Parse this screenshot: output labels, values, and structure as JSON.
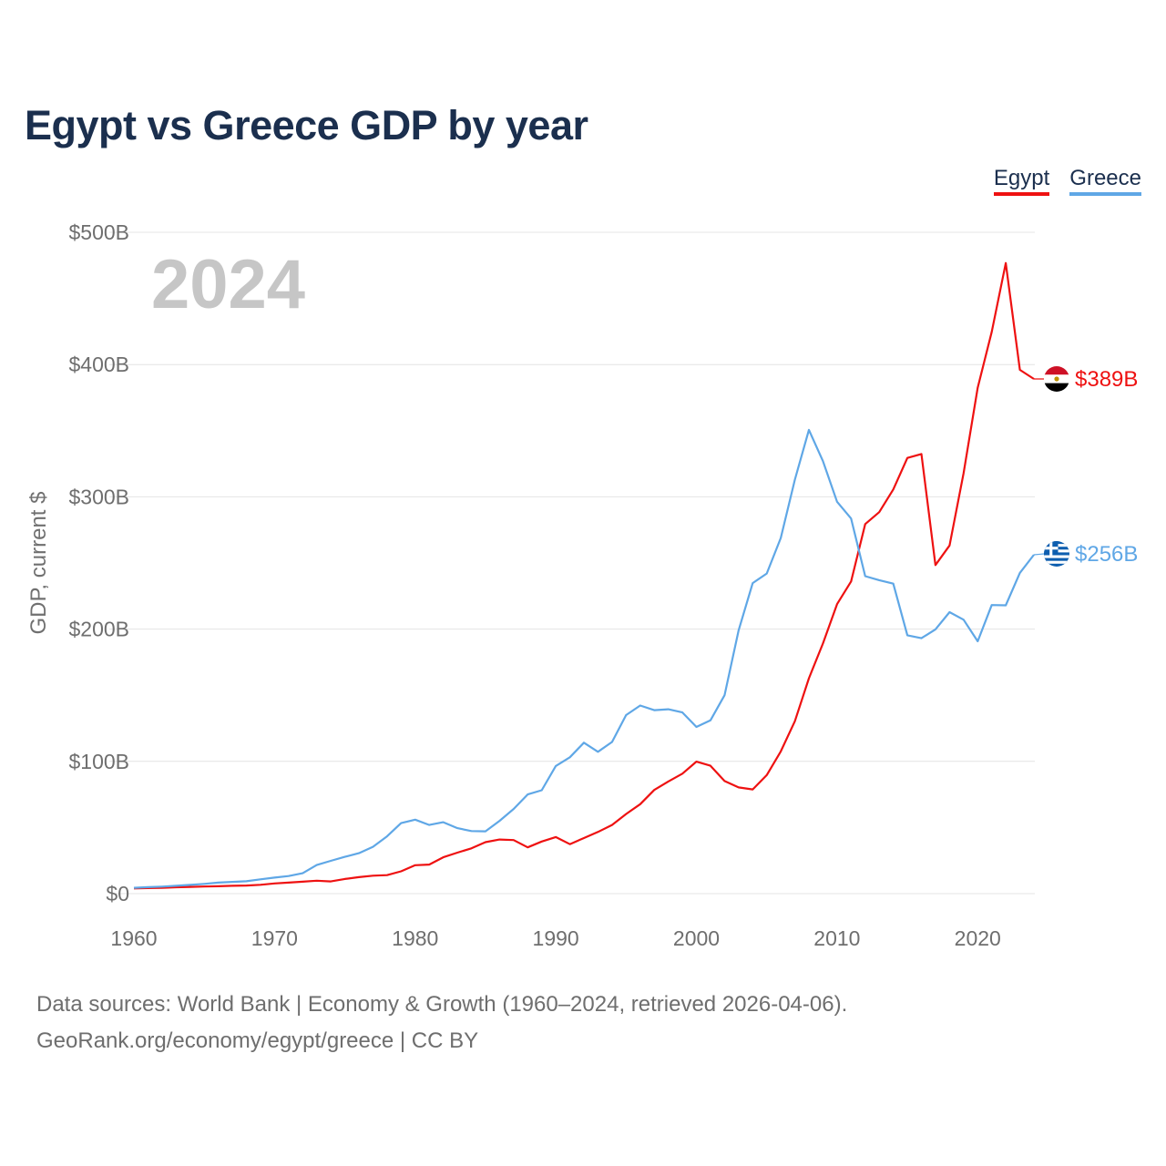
{
  "title": "Egypt vs Greece GDP by year",
  "legend": {
    "egypt": "Egypt",
    "greece": "Greece"
  },
  "footer": {
    "line1": "Data sources: World Bank | Economy & Growth (1960–2024, retrieved 2026-04-06).",
    "line2": "GeoRank.org/economy/egypt/greece | CC BY"
  },
  "chart_data": {
    "type": "line",
    "title": "Egypt vs Greece GDP by year",
    "xlabel": "",
    "ylabel": "GDP, current $",
    "year_watermark": "2024",
    "xlim": [
      1960,
      2024
    ],
    "ylim": [
      0,
      500
    ],
    "unit": "billions of current US$",
    "x_ticks": [
      1960,
      1970,
      1980,
      1990,
      2000,
      2010,
      2020
    ],
    "y_ticks": [
      0,
      100,
      200,
      300,
      400,
      500
    ],
    "y_tick_labels": [
      "$0",
      "$100B",
      "$200B",
      "$300B",
      "$400B",
      "$500B"
    ],
    "grid": true,
    "legend_position": "top-right",
    "x": [
      1960,
      1961,
      1962,
      1963,
      1964,
      1965,
      1966,
      1967,
      1968,
      1969,
      1970,
      1971,
      1972,
      1973,
      1974,
      1975,
      1976,
      1977,
      1978,
      1979,
      1980,
      1981,
      1982,
      1983,
      1984,
      1985,
      1986,
      1987,
      1988,
      1989,
      1990,
      1991,
      1992,
      1993,
      1994,
      1995,
      1996,
      1997,
      1998,
      1999,
      2000,
      2001,
      2002,
      2003,
      2004,
      2005,
      2006,
      2007,
      2008,
      2009,
      2010,
      2011,
      2012,
      2013,
      2014,
      2015,
      2016,
      2017,
      2018,
      2019,
      2020,
      2021,
      2022,
      2023,
      2024
    ],
    "series": [
      {
        "name": "Egypt",
        "color": "#ee1111",
        "end_label": "$389B",
        "values": [
          3.9,
          4.2,
          4.4,
          4.8,
          5.1,
          5.4,
          5.6,
          5.9,
          6.1,
          6.7,
          7.7,
          8.3,
          9.0,
          9.8,
          9.2,
          11.1,
          12.5,
          13.6,
          14.0,
          16.9,
          21.5,
          22.0,
          27.5,
          31.0,
          34.2,
          38.9,
          40.9,
          40.5,
          35.0,
          39.4,
          42.8,
          37.4,
          42.0,
          46.6,
          51.9,
          60.2,
          67.6,
          78.4,
          84.8,
          90.7,
          99.8,
          96.7,
          85.1,
          80.3,
          78.8,
          89.6,
          107.5,
          130.4,
          162.8,
          189.1,
          218.9,
          236.0,
          279.4,
          288.4,
          305.6,
          329.4,
          332.4,
          248.4,
          263.2,
          317.9,
          382.5,
          424.7,
          476.7,
          396.0,
          389.1
        ]
      },
      {
        "name": "Greece",
        "color": "#5fa7e6",
        "end_label": "$256B",
        "values": [
          4.4,
          4.9,
          5.3,
          5.9,
          6.6,
          7.4,
          8.3,
          8.9,
          9.4,
          10.8,
          12.1,
          13.3,
          15.4,
          21.6,
          24.8,
          27.8,
          30.6,
          35.4,
          43.3,
          53.3,
          55.9,
          51.9,
          54.0,
          49.5,
          47.3,
          47.1,
          55.0,
          64.0,
          75.0,
          78.2,
          96.5,
          103.1,
          114.1,
          107.2,
          114.7,
          135.0,
          142.2,
          138.7,
          139.4,
          137.0,
          126.0,
          131.0,
          150.0,
          199.0,
          234.8,
          242.0,
          268.9,
          313.0,
          350.6,
          327.0,
          296.3,
          283.6,
          240.0,
          237.0,
          234.4,
          195.3,
          193.1,
          199.8,
          212.8,
          207.1,
          190.8,
          218.2,
          218.0,
          242.5,
          256.2
        ]
      }
    ]
  }
}
